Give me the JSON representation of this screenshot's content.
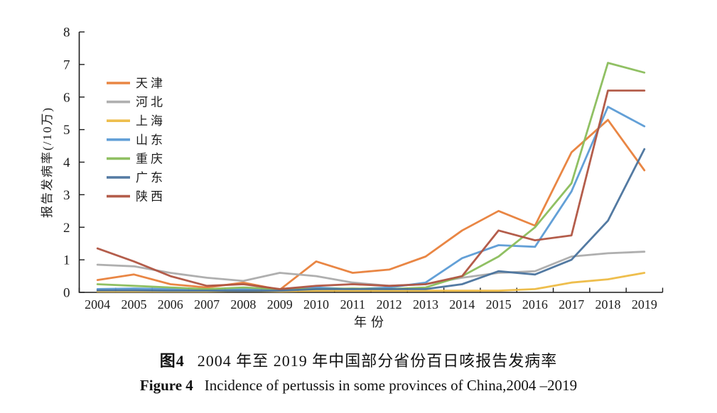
{
  "figure": {
    "y_axis_label": "报告发病率(/10万)",
    "x_axis_label": "年份"
  },
  "captions": {
    "cn_label": "图4",
    "cn_text": "2004 年至 2019 年中国部分省份百日咳报告发病率",
    "en_label": "Figure 4",
    "en_text": "Incidence of pertussis in some provinces of China,2004 –2019"
  },
  "chart_data": {
    "type": "line",
    "title": "",
    "xlabel": "年份",
    "ylabel": "报告发病率(/10万)",
    "ylim": [
      0,
      8
    ],
    "grid": false,
    "legend_position": "upper-left-inside",
    "x": [
      2004,
      2005,
      2006,
      2007,
      2008,
      2009,
      2010,
      2011,
      2012,
      2013,
      2014,
      2015,
      2016,
      2017,
      2018,
      2019
    ],
    "series": [
      {
        "name": "天津",
        "color": "#E87F3A",
        "values": [
          0.38,
          0.55,
          0.25,
          0.15,
          0.3,
          0.08,
          0.95,
          0.6,
          0.7,
          1.1,
          1.9,
          2.5,
          2.05,
          4.3,
          5.3,
          3.75
        ]
      },
      {
        "name": "河北",
        "color": "#ABABAB",
        "values": [
          0.85,
          0.8,
          0.6,
          0.45,
          0.35,
          0.6,
          0.5,
          0.3,
          0.2,
          0.25,
          0.45,
          0.6,
          0.65,
          1.1,
          1.2,
          1.25
        ]
      },
      {
        "name": "上海",
        "color": "#EDBB43",
        "values": [
          0.03,
          0.03,
          0.03,
          0.03,
          0.05,
          0.03,
          0.05,
          0.05,
          0.05,
          0.05,
          0.05,
          0.05,
          0.1,
          0.3,
          0.4,
          0.6
        ]
      },
      {
        "name": "山东",
        "color": "#5B9BD5",
        "values": [
          0.1,
          0.12,
          0.1,
          0.08,
          0.1,
          0.1,
          0.15,
          0.1,
          0.15,
          0.3,
          1.05,
          1.45,
          1.4,
          3.1,
          5.7,
          5.1
        ]
      },
      {
        "name": "重庆",
        "color": "#8ABD5B",
        "values": [
          0.25,
          0.2,
          0.15,
          0.1,
          0.15,
          0.1,
          0.1,
          0.12,
          0.1,
          0.15,
          0.5,
          1.1,
          2.0,
          3.35,
          7.05,
          6.75
        ]
      },
      {
        "name": "广东",
        "color": "#4A739D",
        "values": [
          0.06,
          0.06,
          0.05,
          0.05,
          0.05,
          0.05,
          0.1,
          0.1,
          0.1,
          0.1,
          0.25,
          0.65,
          0.55,
          1.0,
          2.2,
          4.4
        ]
      },
      {
        "name": "陕西",
        "color": "#B05441",
        "values": [
          1.35,
          0.95,
          0.5,
          0.2,
          0.25,
          0.1,
          0.2,
          0.25,
          0.2,
          0.25,
          0.5,
          1.9,
          1.6,
          1.75,
          6.2,
          6.2
        ]
      }
    ]
  }
}
